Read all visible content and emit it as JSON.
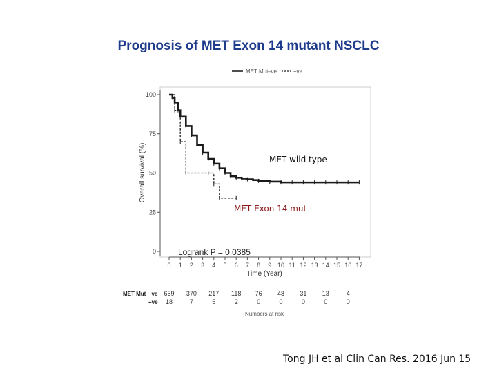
{
  "slide_title": "Prognosis of MET Exon 14 mutant NSCLC",
  "citation": "Tong JH et al Clin Can Res. 2016 Jun 15",
  "chart_data": {
    "type": "line",
    "title": "",
    "xlabel": "Time (Year)",
    "ylabel": "Overall survival (%)",
    "xlim": [
      0,
      17
    ],
    "ylim": [
      0,
      100
    ],
    "x_ticks": [
      0,
      1,
      2,
      3,
      4,
      5,
      6,
      7,
      8,
      9,
      10,
      11,
      12,
      13,
      14,
      15,
      16,
      17
    ],
    "y_ticks": [
      0,
      25,
      50,
      75,
      100
    ],
    "legend": {
      "position": "top",
      "title": "MET Mut",
      "entries": [
        "–ve",
        "+ve"
      ]
    },
    "series": [
      {
        "name": "–ve",
        "style": "solid",
        "x": [
          0,
          0.3,
          0.5,
          0.8,
          1,
          1.5,
          2,
          2.5,
          3,
          3.5,
          4,
          4.5,
          5,
          5.5,
          6,
          6.5,
          7,
          7.5,
          8,
          9,
          10,
          11,
          12,
          13,
          14,
          15,
          16,
          17
        ],
        "y": [
          100,
          98,
          95,
          90,
          86,
          80,
          74,
          68,
          63,
          59,
          56,
          53,
          50,
          48,
          47,
          46.5,
          46,
          45.5,
          45,
          44.5,
          44,
          44,
          44,
          44,
          44,
          44,
          44,
          44
        ]
      },
      {
        "name": "+ve",
        "style": "dashed",
        "x": [
          0,
          0.5,
          1,
          1.5,
          3.5,
          4,
          4.5,
          6
        ],
        "y": [
          100,
          90,
          70,
          50,
          50,
          43,
          34,
          34
        ]
      }
    ],
    "annotations": [
      {
        "text": "MET wild type",
        "color": "#111111"
      },
      {
        "text": "MET Exon 14 mut",
        "color": "#8b1a1a"
      },
      {
        "text": "Logrank P = 0.0385",
        "color": "#222222"
      }
    ],
    "risk_table": {
      "header": "MET Mut",
      "rows": [
        {
          "label": "–ve",
          "values": [
            "659",
            "370",
            "217",
            "118",
            "76",
            "48",
            "31",
            "13",
            "4"
          ]
        },
        {
          "label": "+ve",
          "values": [
            "18",
            "7",
            "5",
            "2",
            "0",
            "0",
            "0",
            "0",
            "0"
          ]
        }
      ],
      "caption": "Numbers at risk"
    }
  }
}
